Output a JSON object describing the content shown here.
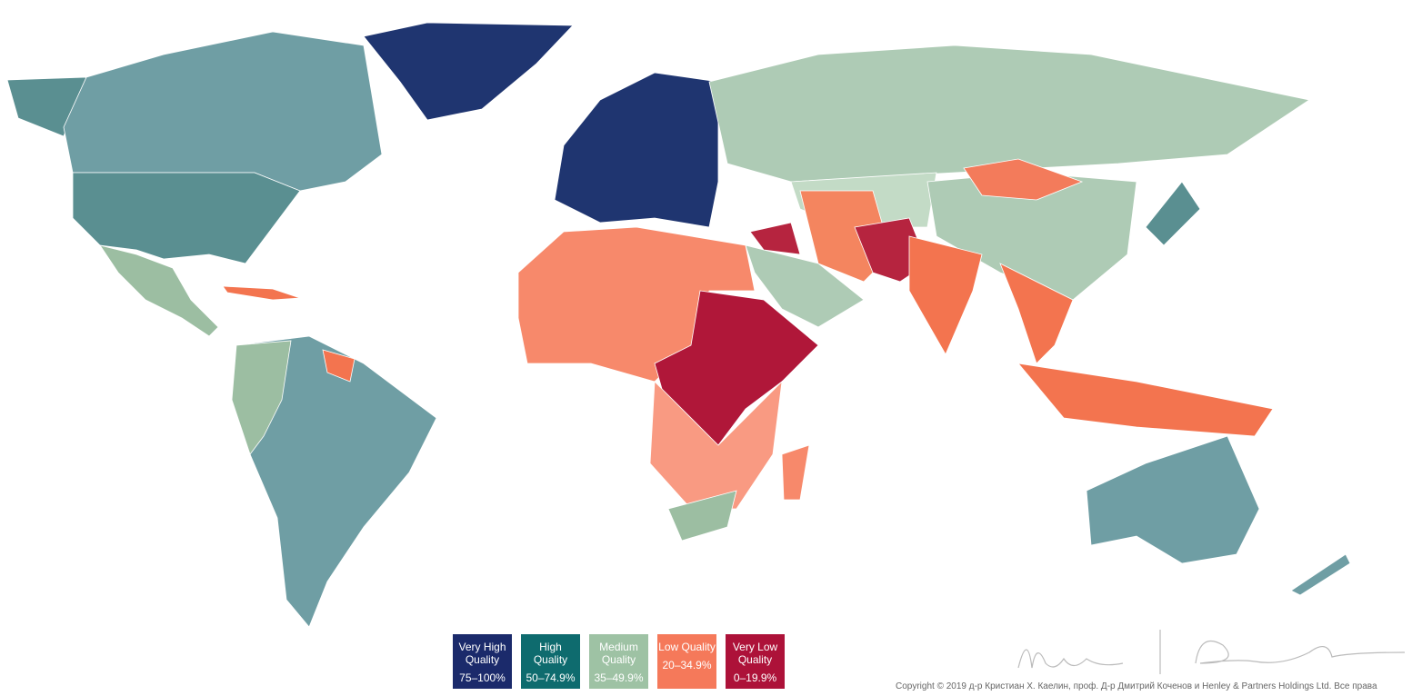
{
  "legend": [
    {
      "label": "Very High Quality",
      "range": "75–100%",
      "color": "#1b2a6b"
    },
    {
      "label": "High Quality",
      "range": "50–74.9%",
      "color": "#0e6b6e"
    },
    {
      "label": "Medium Quality",
      "range": "35–49.9%",
      "color": "#9ec2a4"
    },
    {
      "label": "Low Quality",
      "range": "20–34.9%",
      "color": "#f5795a"
    },
    {
      "label": "Very Low Quality",
      "range": "0–19.9%",
      "color": "#ad1239"
    }
  ],
  "copyright": "Copyright © 2019 д-р Кристиан Х. Каелин, проф. Д-р Дмитрий Коченов и Henley & Partners Holdings Ltd. Все права"
}
